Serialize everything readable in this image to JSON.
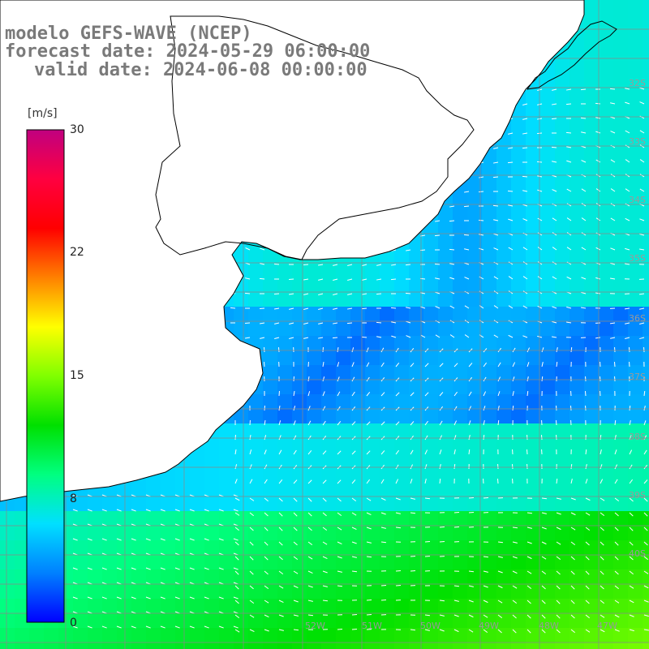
{
  "title": {
    "line1": "modelo GEFS-WAVE (NCEP)",
    "line2": "forecast date: 2024-05-29 06:00:00",
    "line3": "valid date: 2024-06-08 00:00:00"
  },
  "colorbar": {
    "unit": "[m/s]",
    "ticks": [
      {
        "label": "30",
        "value": 30
      },
      {
        "label": "22",
        "value": 22
      },
      {
        "label": "15",
        "value": 15
      },
      {
        "label": "8",
        "value": 8
      },
      {
        "label": "0",
        "value": 0
      }
    ],
    "colors": [
      "#0000ff",
      "#0080ff",
      "#00e0ff",
      "#00ff80",
      "#00e000",
      "#80ff00",
      "#ffff00",
      "#ff8000",
      "#ff0000",
      "#ff0040",
      "#c00080"
    ]
  },
  "latitude_labels": [
    "32S",
    "33S",
    "34S",
    "35S",
    "36S",
    "37S",
    "38S",
    "39S",
    "40S"
  ],
  "longitude_labels": [
    "52W",
    "51W",
    "50W",
    "49W",
    "48W",
    "47W"
  ]
}
